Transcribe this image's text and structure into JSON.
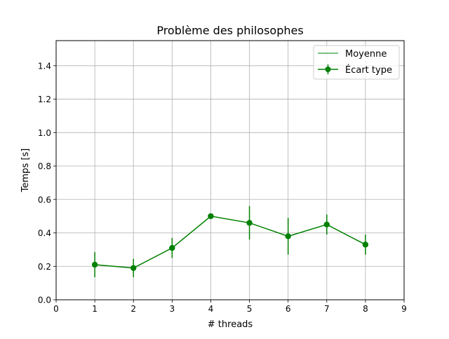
{
  "chart_data": {
    "type": "line",
    "title": "Problème des philosophes",
    "xlabel": "# threads",
    "ylabel": "Temps [s]",
    "xlim": [
      0,
      9
    ],
    "ylim": [
      0,
      1.55
    ],
    "xticks": [
      0,
      1,
      2,
      3,
      4,
      5,
      6,
      7,
      8,
      9
    ],
    "yticks": [
      0.0,
      0.2,
      0.4,
      0.6,
      0.8,
      1.0,
      1.2,
      1.4
    ],
    "xtick_labels": [
      "0",
      "1",
      "2",
      "3",
      "4",
      "5",
      "6",
      "7",
      "8",
      "9"
    ],
    "ytick_labels": [
      "0.0",
      "0.2",
      "0.4",
      "0.6",
      "0.8",
      "1.0",
      "1.2",
      "1.4"
    ],
    "grid": true,
    "legend_position": "top-right",
    "series": [
      {
        "name": "Moyenne",
        "kind": "line",
        "color": "#008000",
        "x": [
          1,
          2,
          3,
          4,
          5,
          6,
          7,
          8
        ],
        "y": [
          0.21,
          0.19,
          0.31,
          0.5,
          0.46,
          0.38,
          0.45,
          0.33
        ]
      },
      {
        "name": "Écart type",
        "kind": "errorbar",
        "color": "#008000",
        "x": [
          1,
          2,
          3,
          4,
          5,
          6,
          7,
          8
        ],
        "y": [
          0.21,
          0.19,
          0.31,
          0.5,
          0.46,
          0.38,
          0.45,
          0.33
        ],
        "yerr": [
          0.075,
          0.055,
          0.06,
          0.015,
          0.1,
          0.11,
          0.06,
          0.06
        ]
      }
    ]
  }
}
